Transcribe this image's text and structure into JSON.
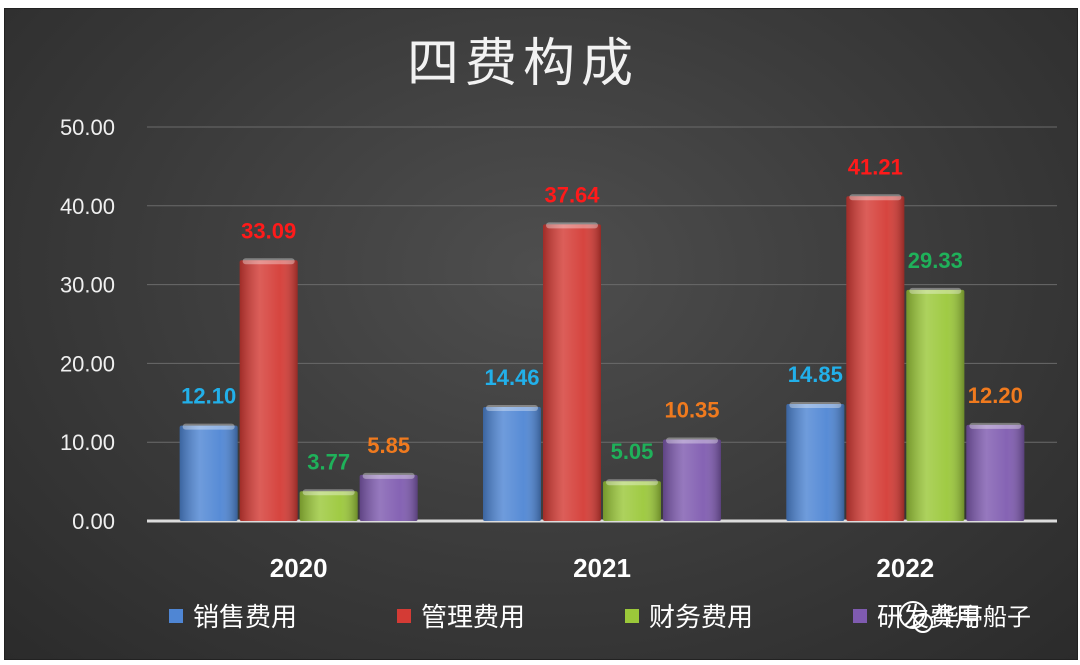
{
  "chart_data": {
    "type": "bar",
    "title": "四费构成",
    "categories": [
      "2020",
      "2021",
      "2022"
    ],
    "ylim": [
      0,
      50
    ],
    "yticks": [
      "0.00",
      "10.00",
      "20.00",
      "30.00",
      "40.00",
      "50.00"
    ],
    "grid": true,
    "legend_position": "bottom",
    "series": [
      {
        "name": "销售费用",
        "values": [
          12.1,
          14.46,
          14.85
        ],
        "labels": [
          "12.10",
          "14.46",
          "14.85"
        ],
        "color": "#4f86d4",
        "label_color": "#22b0ea"
      },
      {
        "name": "管理费用",
        "values": [
          33.09,
          37.64,
          41.21
        ],
        "labels": [
          "33.09",
          "37.64",
          "41.21"
        ],
        "color": "#d43b35",
        "label_color": "#ff1a1a"
      },
      {
        "name": "财务费用",
        "values": [
          3.77,
          5.05,
          29.33
        ],
        "labels": [
          "3.77",
          "5.05",
          "29.33"
        ],
        "color": "#9bc83a",
        "label_color": "#1fb15a"
      },
      {
        "name": "研发费用",
        "values": [
          5.85,
          10.35,
          12.2
        ],
        "labels": [
          "5.85",
          "10.35",
          "12.20"
        ],
        "color": "#7f5bb0",
        "label_color": "#f07a1e"
      }
    ]
  },
  "watermark": {
    "text": "华亭船子"
  }
}
